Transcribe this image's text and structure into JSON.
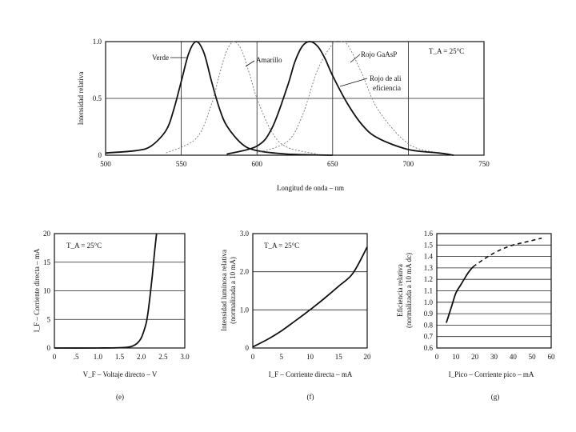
{
  "chart_data": [
    {
      "id": "top",
      "type": "line",
      "title": "",
      "xlabel": "Longitud de onda – nm",
      "ylabel": "Intensidad relativa",
      "xlim": [
        500,
        750
      ],
      "ylim": [
        0,
        1.0
      ],
      "xticks": [
        "500",
        "550",
        "600",
        "650",
        "700",
        "750"
      ],
      "yticks": [
        "0",
        "0.5",
        "1.0"
      ],
      "annotation": "T_A = 25°C",
      "series": [
        {
          "name": "Verde",
          "peak": 560,
          "width": 13,
          "style": "solid",
          "x": [
            500,
            520,
            530,
            540,
            545,
            550,
            555,
            560,
            565,
            570,
            575,
            580,
            590,
            600,
            620,
            650
          ],
          "y": [
            0.02,
            0.04,
            0.08,
            0.22,
            0.4,
            0.65,
            0.9,
            1.0,
            0.9,
            0.65,
            0.42,
            0.26,
            0.1,
            0.04,
            0.01,
            0.0
          ]
        },
        {
          "name": "Amarillo",
          "peak": 585,
          "width": 14,
          "style": "light",
          "x": [
            540,
            560,
            570,
            575,
            580,
            585,
            590,
            595,
            600,
            610,
            620,
            640
          ],
          "y": [
            0.02,
            0.15,
            0.45,
            0.7,
            0.92,
            1.0,
            0.92,
            0.72,
            0.5,
            0.2,
            0.07,
            0.01
          ]
        },
        {
          "name": "Rojo GaAsP",
          "peak": 655,
          "width": 16,
          "style": "light",
          "x": [
            600,
            620,
            630,
            640,
            650,
            655,
            660,
            670,
            680,
            700,
            720
          ],
          "y": [
            0.02,
            0.12,
            0.35,
            0.75,
            0.98,
            1.0,
            0.97,
            0.7,
            0.4,
            0.1,
            0.02
          ]
        },
        {
          "name": "Rojo de ali eficiencia",
          "peak": 635,
          "width": 18,
          "style": "solid",
          "x": [
            580,
            600,
            610,
            620,
            625,
            630,
            635,
            640,
            645,
            650,
            660,
            670,
            680,
            700,
            720,
            730
          ],
          "y": [
            0.01,
            0.08,
            0.24,
            0.6,
            0.82,
            0.96,
            1.0,
            0.96,
            0.85,
            0.7,
            0.45,
            0.26,
            0.15,
            0.05,
            0.02,
            0.0
          ]
        }
      ]
    },
    {
      "id": "e",
      "type": "line",
      "caption": "(e)",
      "xlabel": "V_F – Voltaje directo – V",
      "ylabel": "I_F – Corriente directa – mA",
      "xlim": [
        0,
        3.0
      ],
      "ylim": [
        0,
        20
      ],
      "xticks": [
        "0",
        ".5",
        "1.0",
        "1.5",
        "2.0",
        "2.5",
        "3.0"
      ],
      "yticks": [
        "0",
        "5",
        "10",
        "15",
        "20"
      ],
      "annotation": "T_A = 25°C",
      "series": [
        {
          "name": "I_F vs V_F",
          "x": [
            0,
            1.0,
            1.5,
            1.7,
            1.8,
            1.9,
            2.0,
            2.1,
            2.15,
            2.2,
            2.25,
            2.3,
            2.35
          ],
          "y": [
            0,
            0,
            0.05,
            0.15,
            0.35,
            0.8,
            1.8,
            4.0,
            6.0,
            9.0,
            12.5,
            16.5,
            20
          ]
        }
      ]
    },
    {
      "id": "f",
      "type": "line",
      "caption": "(f)",
      "xlabel": "I_F – Corriente directa – mA",
      "ylabel": "Intensidad luminosa relativa (normalizada a 10 mA)",
      "xlim": [
        0,
        20
      ],
      "ylim": [
        0,
        3.0
      ],
      "xticks": [
        "0",
        "5",
        "10",
        "15",
        "20"
      ],
      "yticks": [
        "0",
        "1.0",
        "2.0",
        "3.0"
      ],
      "annotation": "T_A = 25°C",
      "series": [
        {
          "name": "Intensidad",
          "x": [
            0,
            2.5,
            5,
            7.5,
            10,
            12.5,
            15,
            17.5,
            20
          ],
          "y": [
            0.03,
            0.22,
            0.45,
            0.72,
            1.0,
            1.3,
            1.62,
            1.96,
            2.65
          ]
        }
      ]
    },
    {
      "id": "g",
      "type": "line",
      "caption": "(g)",
      "xlabel": "I_Pico – Corriente pico – mA",
      "ylabel": "Eficiencia relativa (normalizada a 10 mA dc)",
      "xlim": [
        0,
        60
      ],
      "ylim": [
        0.6,
        1.6
      ],
      "xticks": [
        "0",
        "10",
        "20",
        "30",
        "40",
        "50",
        "60"
      ],
      "yticks": [
        "0.6",
        "0.7",
        "0.8",
        "0.9",
        "1.0",
        "1.1",
        "1.2",
        "1.3",
        "1.4",
        "1.5",
        "1.6"
      ],
      "series": [
        {
          "name": "solid",
          "style": "solid",
          "x": [
            5,
            7.5,
            10,
            12.5,
            15,
            17,
            19
          ],
          "y": [
            0.82,
            0.95,
            1.08,
            1.15,
            1.22,
            1.27,
            1.31
          ]
        },
        {
          "name": "dashed",
          "style": "dashed",
          "x": [
            19,
            25,
            30,
            35,
            40,
            45,
            50,
            55
          ],
          "y": [
            1.31,
            1.38,
            1.43,
            1.47,
            1.5,
            1.52,
            1.54,
            1.56
          ]
        }
      ]
    }
  ]
}
